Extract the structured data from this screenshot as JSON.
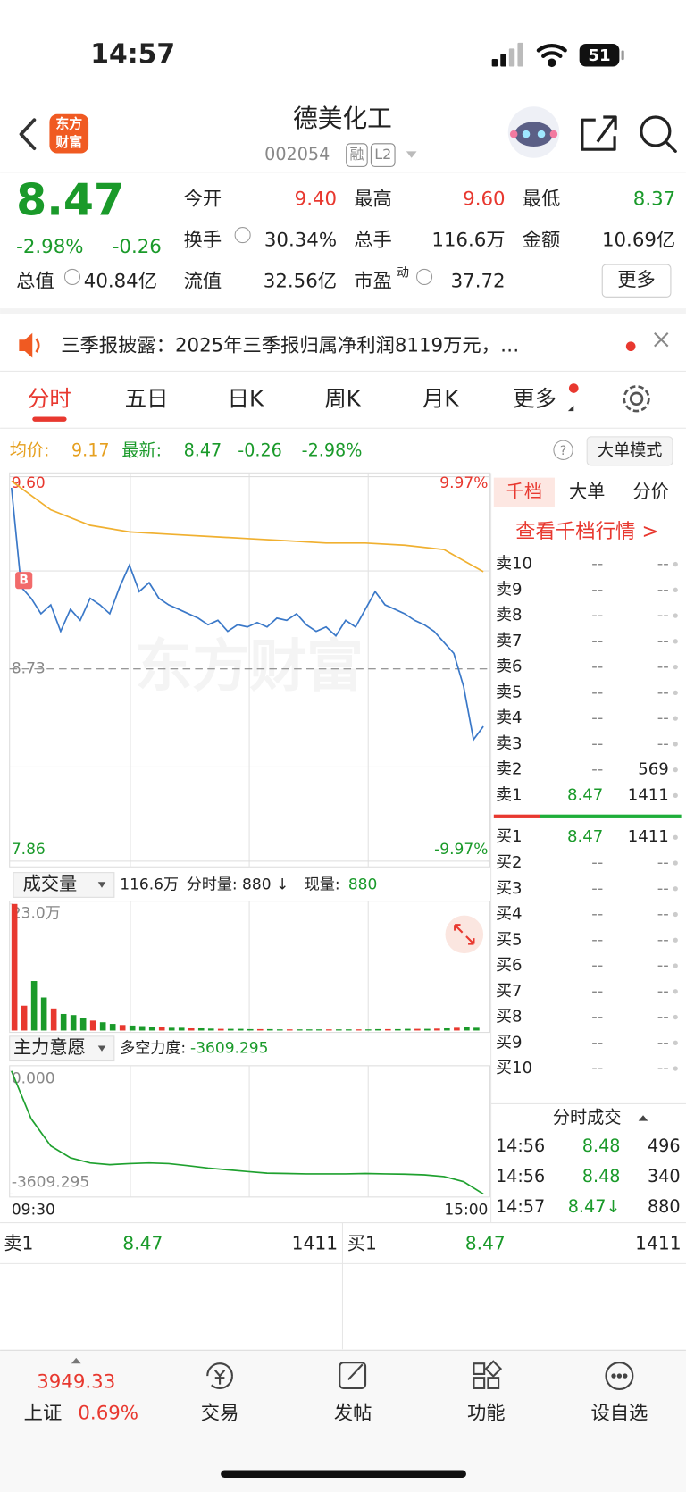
{
  "status_bar": {
    "time": "14:57",
    "battery": "51"
  },
  "header": {
    "logo": [
      "东方",
      "财富"
    ],
    "name": "德美化工",
    "code": "002054",
    "badges": [
      "融",
      "L2"
    ]
  },
  "quote": {
    "price": "8.47",
    "change_pct": "-2.98%",
    "change": "-0.26",
    "pe_suffix": "动",
    "more_button": "更多",
    "fields": [
      {
        "label": "今开",
        "value": "9.40"
      },
      {
        "label": "最高",
        "value": "9.60"
      },
      {
        "label": "最低",
        "value": "8.37"
      },
      {
        "label": "换手",
        "value": "30.34%"
      },
      {
        "label": "总手",
        "value": "116.6万"
      },
      {
        "label": "金额",
        "value": "10.69亿"
      },
      {
        "label": "流值",
        "value": "32.56亿"
      },
      {
        "label": "市盈",
        "value": "37.72"
      },
      {
        "label": "",
        "value": ""
      },
      {
        "label": "总值",
        "value": "40.84亿"
      }
    ]
  },
  "news": {
    "text": "三季报披露：2025年三季报归属净利润8119万元，…"
  },
  "tabs": [
    "分时",
    "五日",
    "日K",
    "周K",
    "月K",
    "更多"
  ],
  "info_line": {
    "avg_label": "均价:",
    "avg": "9.17",
    "latest_label": "最新:",
    "latest": "8.47",
    "change": "-0.26",
    "pct": "-2.98%",
    "mode_button": "大单模式"
  },
  "chart_data": [
    {
      "type": "line",
      "ylim": [
        7.86,
        9.6
      ],
      "yticks": [
        {
          "value": 9.6,
          "label": "9.60"
        },
        8.73,
        7.86
      ],
      "y2lim": [
        -9.97,
        9.97
      ],
      "y2ticks": [
        {
          "value": 9.97,
          "label": "9.97%"
        },
        {
          "value": -9.97,
          "label": "-9.97%"
        }
      ],
      "series": [
        {
          "color": "#3a78c8",
          "values": [
            9.55,
            9.1,
            9.05,
            8.98,
            9.02,
            8.9,
            9.0,
            8.95,
            9.05,
            9.02,
            8.98,
            9.1,
            9.2,
            9.08,
            9.12,
            9.05,
            9.02,
            9.0,
            8.98,
            8.96,
            8.93,
            8.95,
            8.9,
            8.93,
            8.92,
            8.94,
            8.92,
            8.96,
            8.95,
            8.98,
            8.93,
            8.9,
            8.92,
            8.88,
            8.95,
            8.92,
            9.0,
            9.08,
            9.02,
            9.0,
            8.98,
            8.95,
            8.93,
            8.9,
            8.85,
            8.8,
            8.65,
            8.41,
            8.47
          ]
        },
        {
          "color": "#f0b030",
          "values": [
            9.58,
            9.45,
            9.38,
            9.35,
            9.34,
            9.33,
            9.32,
            9.31,
            9.3,
            9.3,
            9.29,
            9.27,
            9.17
          ]
        }
      ]
    },
    {
      "type": "bar",
      "title": "成交量",
      "total": "116.6万",
      "minute_volume": "分时量: 880 ↓",
      "current_label": "现量:",
      "current": "880",
      "ylim": [
        0,
        230000
      ],
      "yticks": [
        {
          "value": 230000,
          "label": "23.0万"
        }
      ],
      "values": [
        230000,
        45000,
        90000,
        60000,
        40000,
        30000,
        28000,
        22000,
        18000,
        15000,
        12000,
        10000,
        9000,
        8000,
        7000,
        6000,
        5000,
        5000,
        4000,
        4000,
        3500,
        3000,
        3000,
        3000,
        2500,
        2500,
        2500,
        2000,
        2000,
        2000,
        2000,
        2000,
        2000,
        2000,
        2000,
        2000,
        2000,
        2500,
        2500,
        2500,
        3000,
        3000,
        3000,
        3500,
        4000,
        5000,
        6000,
        5000
      ],
      "colors": [
        "#e8382f",
        "#e8382f",
        "#1a9a2a",
        "#1a9a2a",
        "#e8382f",
        "#1a9a2a",
        "#1a9a2a",
        "#1a9a2a",
        "#e8382f",
        "#1a9a2a",
        "#1a9a2a",
        "#e8382f",
        "#1a9a2a",
        "#1a9a2a",
        "#1a9a2a",
        "#e8382f",
        "#1a9a2a",
        "#1a9a2a",
        "#e8382f",
        "#1a9a2a",
        "#1a9a2a",
        "#e8382f",
        "#1a9a2a",
        "#1a9a2a",
        "#1a9a2a",
        "#e8382f",
        "#1a9a2a",
        "#1a9a2a",
        "#e8382f",
        "#1a9a2a",
        "#1a9a2a",
        "#1a9a2a",
        "#e8382f",
        "#1a9a2a",
        "#1a9a2a",
        "#e8382f",
        "#1a9a2a",
        "#1a9a2a",
        "#e8382f",
        "#1a9a2a",
        "#1a9a2a",
        "#e8382f",
        "#1a9a2a",
        "#e8382f",
        "#1a9a2a",
        "#e8382f",
        "#1a9a2a",
        "#1a9a2a"
      ]
    },
    {
      "type": "line",
      "title": "主力意愿",
      "indicator_label": "多空力度:",
      "indicator_value": "-3609.295",
      "ylim": [
        -3700,
        100
      ],
      "yticks": [
        {
          "value": 0,
          "label": "0.000"
        },
        -3609.295
      ],
      "categories": [
        "09:30",
        null,
        null,
        null,
        null,
        null,
        null,
        null,
        null,
        null,
        null,
        null,
        null,
        null,
        null,
        null,
        null,
        null,
        null,
        null,
        null,
        null,
        null,
        null,
        "15:00"
      ],
      "series": [
        {
          "color": "#1fa12f",
          "values": [
            0,
            -1400,
            -2200,
            -2550,
            -2700,
            -2750,
            -2720,
            -2700,
            -2720,
            -2780,
            -2850,
            -2900,
            -2950,
            -3000,
            -3010,
            -3020,
            -3020,
            -3020,
            -3010,
            -3020,
            -3030,
            -3050,
            -3100,
            -3250,
            -3609.295
          ]
        }
      ]
    }
  ],
  "order_book": {
    "tabs": [
      "千档",
      "大单",
      "分价"
    ],
    "link": "查看千档行情 >",
    "sell": [
      {
        "label": "卖10",
        "price": "--",
        "volume": "--"
      },
      {
        "label": "卖9",
        "price": "--",
        "volume": "--"
      },
      {
        "label": "卖8",
        "price": "--",
        "volume": "--"
      },
      {
        "label": "卖7",
        "price": "--",
        "volume": "--"
      },
      {
        "label": "卖6",
        "price": "--",
        "volume": "--"
      },
      {
        "label": "卖5",
        "price": "--",
        "volume": "--"
      },
      {
        "label": "卖4",
        "price": "--",
        "volume": "--"
      },
      {
        "label": "卖3",
        "price": "--",
        "volume": "--"
      },
      {
        "label": "卖2",
        "price": "--",
        "volume": "569"
      },
      {
        "label": "卖1",
        "price": "8.47",
        "volume": "1411"
      }
    ],
    "buy": [
      {
        "label": "买1",
        "price": "8.47",
        "volume": "1411"
      },
      {
        "label": "买2",
        "price": "--",
        "volume": "--"
      },
      {
        "label": "买3",
        "price": "--",
        "volume": "--"
      },
      {
        "label": "买4",
        "price": "--",
        "volume": "--"
      },
      {
        "label": "买5",
        "price": "--",
        "volume": "--"
      },
      {
        "label": "买6",
        "price": "--",
        "volume": "--"
      },
      {
        "label": "买7",
        "price": "--",
        "volume": "--"
      },
      {
        "label": "买8",
        "price": "--",
        "volume": "--"
      },
      {
        "label": "买9",
        "price": "--",
        "volume": "--"
      },
      {
        "label": "买10",
        "price": "--",
        "volume": "--"
      }
    ]
  },
  "trades": {
    "title": "分时成交",
    "rows": [
      {
        "time": "14:56",
        "price": "8.48",
        "volume": "496"
      },
      {
        "time": "14:56",
        "price": "8.48",
        "volume": "340"
      },
      {
        "time": "14:57",
        "price": "8.47↓",
        "volume": "880"
      }
    ]
  },
  "best_quotes": [
    {
      "label": "卖1",
      "price": "8.47",
      "volume": "1411"
    },
    {
      "label": "买1",
      "price": "8.47",
      "volume": "1411"
    }
  ],
  "index": {
    "value": "3949.33",
    "name": "上证",
    "change": "0.69%"
  },
  "nav": [
    "交易",
    "发帖",
    "功能",
    "设自选"
  ]
}
